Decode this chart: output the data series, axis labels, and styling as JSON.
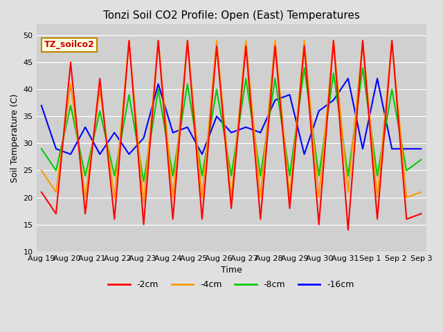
{
  "title": "Tonzi Soil CO2 Profile: Open (East) Temperatures",
  "xlabel": "Time",
  "ylabel": "Soil Temperature (C)",
  "ylim": [
    10,
    52
  ],
  "yticks": [
    10,
    15,
    20,
    25,
    30,
    35,
    40,
    45,
    50
  ],
  "legend_label": "TZ_soilco2",
  "series_labels": [
    "-2cm",
    "-4cm",
    "-8cm",
    "-16cm"
  ],
  "series_colors": [
    "#ff0000",
    "#ff9900",
    "#00cc00",
    "#0000ff"
  ],
  "fig_bg_color": "#e0e0e0",
  "plot_bg_color": "#d0d0d0",
  "x_tick_labels": [
    "Aug 19",
    "Aug 20",
    "Aug 21",
    "Aug 22",
    "Aug 23",
    "Aug 24",
    "Aug 25",
    "Aug 26",
    "Aug 27",
    "Aug 28",
    "Aug 29",
    "Aug 30",
    "Aug 31",
    "Sep 1",
    "Sep 2",
    "Sep 3"
  ],
  "neg2cm": [
    21,
    17,
    45,
    17,
    42,
    16,
    49,
    15,
    49,
    16,
    49,
    16,
    48,
    18,
    48,
    16,
    48,
    18,
    48,
    15,
    49,
    14,
    49,
    16,
    49,
    16,
    17
  ],
  "neg4cm": [
    25,
    21,
    41,
    20,
    40,
    20,
    49,
    19,
    49,
    20,
    49,
    20,
    49,
    20,
    49,
    20,
    49,
    20,
    49,
    20,
    49,
    21,
    49,
    20,
    49,
    20,
    21
  ],
  "neg8cm": [
    29,
    25,
    37,
    24,
    36,
    24,
    39,
    23,
    40,
    24,
    41,
    24,
    40,
    24,
    42,
    24,
    42,
    24,
    44,
    24,
    43,
    24,
    44,
    24,
    40,
    25,
    27
  ],
  "neg16cm": [
    37,
    29,
    28,
    33,
    28,
    32,
    28,
    31,
    41,
    32,
    33,
    28,
    35,
    32,
    33,
    32,
    38,
    39,
    28,
    36,
    38,
    42,
    29,
    42,
    29,
    29,
    29
  ],
  "x_step": 0.5769,
  "n_points": 27
}
